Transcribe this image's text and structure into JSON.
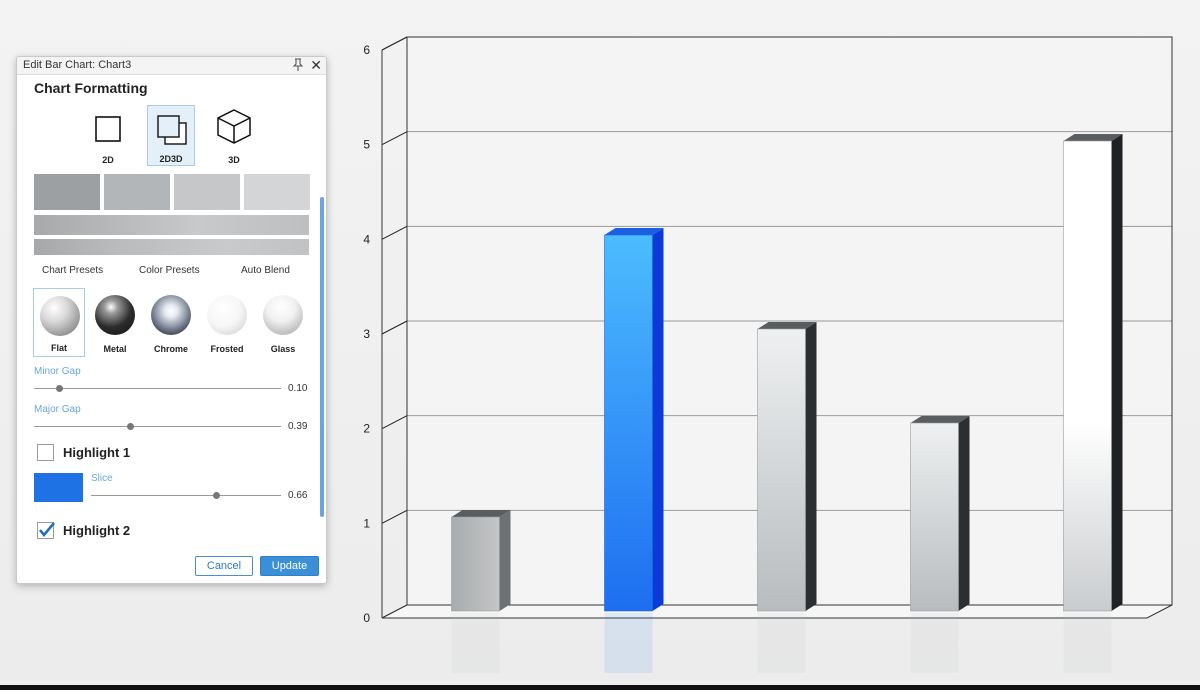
{
  "dialog": {
    "title": "Edit Bar Chart: Chart3",
    "section_title": "Chart Formatting",
    "modes": [
      {
        "label": "2D",
        "selected": false
      },
      {
        "label": "2D3D",
        "selected": true
      },
      {
        "label": "3D",
        "selected": false
      }
    ],
    "swatch_colors": [
      "#9da0a3",
      "#b3b6b8",
      "#c5c7c8",
      "#d4d5d6"
    ],
    "preset_tabs": [
      "Chart Presets",
      "Color Presets",
      "Auto Blend"
    ],
    "materials": [
      {
        "label": "Flat",
        "selected": true
      },
      {
        "label": "Metal",
        "selected": false
      },
      {
        "label": "Chrome",
        "selected": false
      },
      {
        "label": "Frosted",
        "selected": false
      },
      {
        "label": "Glass",
        "selected": false
      }
    ],
    "minor_gap": {
      "label": "Minor Gap",
      "value": "0.10",
      "fraction": 0.1
    },
    "major_gap": {
      "label": "Major Gap",
      "value": "0.39",
      "fraction": 0.39
    },
    "highlight1": {
      "label": "Highlight 1",
      "checked": false
    },
    "slice": {
      "label": "Slice",
      "value": "0.66",
      "fraction": 0.66,
      "color": "#1f72e3"
    },
    "highlight2": {
      "label": "Highlight 2",
      "checked": true
    },
    "cancel_label": "Cancel",
    "update_label": "Update"
  },
  "chart_data": {
    "type": "bar",
    "categories": [
      "",
      "",
      "",
      "",
      ""
    ],
    "values": [
      1,
      4,
      3,
      2,
      5
    ],
    "highlighted_index": 1,
    "highlight_color": "#2f8cf0",
    "ylim": [
      0,
      6
    ],
    "yticks": [
      "0",
      "1",
      "2",
      "3",
      "4",
      "5",
      "6"
    ],
    "grid": true,
    "title": "",
    "xlabel": "",
    "ylabel": ""
  }
}
